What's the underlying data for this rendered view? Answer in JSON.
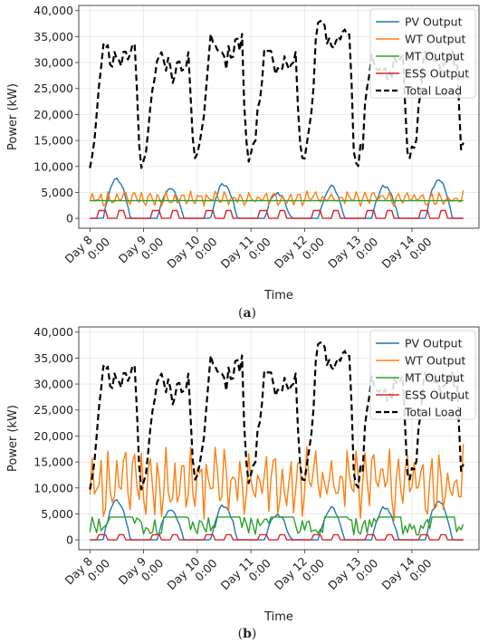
{
  "figure": {
    "panels": [
      {
        "caption_open": "(",
        "caption_letter": "a",
        "caption_close": ")"
      },
      {
        "caption_open": "(",
        "caption_letter": "b",
        "caption_close": ")"
      }
    ]
  },
  "colors": {
    "pv": "#1f77b4",
    "wt": "#ff7f0e",
    "mt": "#2ca02c",
    "ess": "#d62728",
    "load": "#000000",
    "grid": "#e6e6e6"
  },
  "chart_data": [
    {
      "type": "line",
      "xlabel": "Time",
      "ylabel": "Power (kW)",
      "x_unit": "hours",
      "xlim": [
        -5,
        174
      ],
      "ylim": [
        -1900,
        41000
      ],
      "yticks": [
        0,
        5000,
        10000,
        15000,
        20000,
        25000,
        30000,
        35000,
        40000
      ],
      "ytick_labels": [
        "0",
        "5,000",
        "10,000",
        "15,000",
        "20,000",
        "25,000",
        "30,000",
        "35,000",
        "40,000"
      ],
      "xticks": [
        0,
        24,
        48,
        72,
        96,
        120,
        144
      ],
      "xtick_labels": [
        [
          "Day 8",
          "0:00"
        ],
        [
          "Day 9",
          "0:00"
        ],
        [
          "Day 10",
          "0:00"
        ],
        [
          "Day 11",
          "0:00"
        ],
        [
          "Day 12",
          "0:00"
        ],
        [
          "Day 13",
          "0:00"
        ],
        [
          "Day 14",
          "0:00"
        ]
      ],
      "grid": true,
      "legend_position": "top-right",
      "load_peaks": [
        33500,
        32000,
        35500,
        32500,
        38000,
        31500,
        32500,
        34000
      ],
      "series": [
        {
          "name": "PV Output",
          "key": "pv",
          "style": "solid",
          "peak": 8500
        },
        {
          "name": "WT Output",
          "key": "wt",
          "style": "solid",
          "level": 3800,
          "amplitude": 1700
        },
        {
          "name": "MT Output",
          "key": "mt",
          "style": "solid",
          "constant": 3400
        },
        {
          "name": "ESS Output",
          "key": "ess",
          "style": "solid",
          "pulse": 1500
        },
        {
          "name": "Total Load",
          "key": "load",
          "style": "dashed"
        }
      ]
    },
    {
      "type": "line",
      "xlabel": "Time",
      "ylabel": "Power (kW)",
      "x_unit": "hours",
      "xlim": [
        -5,
        174
      ],
      "ylim": [
        -1900,
        41000
      ],
      "yticks": [
        0,
        5000,
        10000,
        15000,
        20000,
        25000,
        30000,
        35000,
        40000
      ],
      "ytick_labels": [
        "0",
        "5,000",
        "10,000",
        "15,000",
        "20,000",
        "25,000",
        "30,000",
        "35,000",
        "40,000"
      ],
      "xticks": [
        0,
        24,
        48,
        72,
        96,
        120,
        144
      ],
      "xtick_labels": [
        [
          "Day 8",
          "0:00"
        ],
        [
          "Day 9",
          "0:00"
        ],
        [
          "Day 10",
          "0:00"
        ],
        [
          "Day 11",
          "0:00"
        ],
        [
          "Day 12",
          "0:00"
        ],
        [
          "Day 13",
          "0:00"
        ],
        [
          "Day 14",
          "0:00"
        ]
      ],
      "grid": true,
      "legend_position": "top-right",
      "load_peaks": [
        33500,
        32000,
        35500,
        32500,
        38000,
        31500,
        32500,
        34000
      ],
      "series": [
        {
          "name": "PV Output",
          "key": "pv",
          "style": "solid",
          "peak": 8500
        },
        {
          "name": "WT Output",
          "key": "wt",
          "style": "solid",
          "level": 11000,
          "amplitude": 8000
        },
        {
          "name": "MT Output",
          "key": "mt",
          "style": "solid",
          "constant": 4400
        },
        {
          "name": "ESS Output",
          "key": "ess",
          "style": "solid",
          "pulse": 1000
        },
        {
          "name": "Total Load",
          "key": "load",
          "style": "dashed"
        }
      ]
    }
  ]
}
